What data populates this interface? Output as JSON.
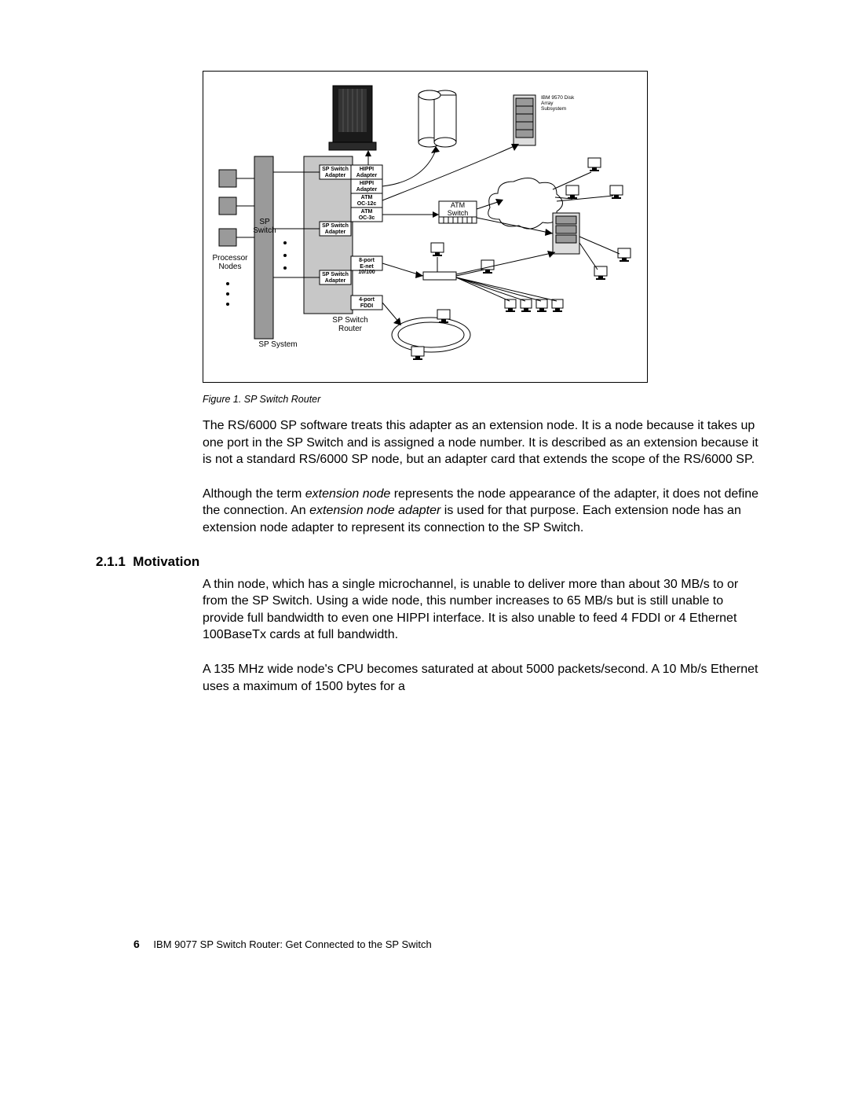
{
  "figure": {
    "caption": "Figure 1.  SP Switch Router",
    "labels": {
      "disk_array": "IBM 9570 Disk\nArray\nSubsystem",
      "processor_nodes": "Processor\nNodes",
      "sp_switch": "SP\nSwitch",
      "sp_system": "SP System",
      "sp_switch_router": "SP Switch\nRouter",
      "atm_switch": "ATM\nSwitch",
      "cards": {
        "sp_adapter1": "SP Switch\nAdapter",
        "hippi1": "HIPPI\nAdapter",
        "hippi2": "HIPPI\nAdapter",
        "atm12": "ATM\nOC-12c",
        "atm3": "ATM\nOC-3c",
        "sp_adapter2": "SP Switch\nAdapter",
        "enet": "8-port\nE-net 10/100",
        "sp_adapter3": "SP Switch\nAdapter",
        "fddi": "4-port\nFDDI"
      }
    },
    "colors": {
      "node_fill": "#9a9a9a",
      "router_fill": "#c7c7c7",
      "switch_fill": "#9a9a9a",
      "line": "#000000",
      "background": "#ffffff"
    }
  },
  "paragraphs": {
    "p1_a": "The RS/6000 SP software treats this adapter as an extension node. It is a node because it takes up one port in the SP Switch and is assigned a node number. It is described as an extension because it is not a standard RS/6000 SP node, but an adapter card that extends the scope of the RS/6000 SP.",
    "p2_a": "Although the term ",
    "p2_em1": "extension node",
    "p2_b": " represents the node appearance of the adapter, it does not define the connection. An ",
    "p2_em2": "extension node adapter",
    "p2_c": " is used for that purpose. Each extension node has an extension node adapter to represent its connection to the SP Switch.",
    "p3": "A thin node, which has a single microchannel, is unable to deliver more than about 30 MB/s to or from the SP Switch. Using a wide node, this number increases to 65 MB/s but is still unable to provide full bandwidth to even one HIPPI interface. It is also unable to feed 4 FDDI or 4 Ethernet 100BaseTx cards at full bandwidth.",
    "p4": "A 135 MHz wide node's CPU becomes saturated at about 5000 packets/second. A 10 Mb/s Ethernet uses a maximum of 1500 bytes for a"
  },
  "section": {
    "number": "2.1.1",
    "title": "Motivation"
  },
  "footer": {
    "page": "6",
    "book": "IBM 9077 SP Switch Router: Get Connected to the SP Switch"
  }
}
